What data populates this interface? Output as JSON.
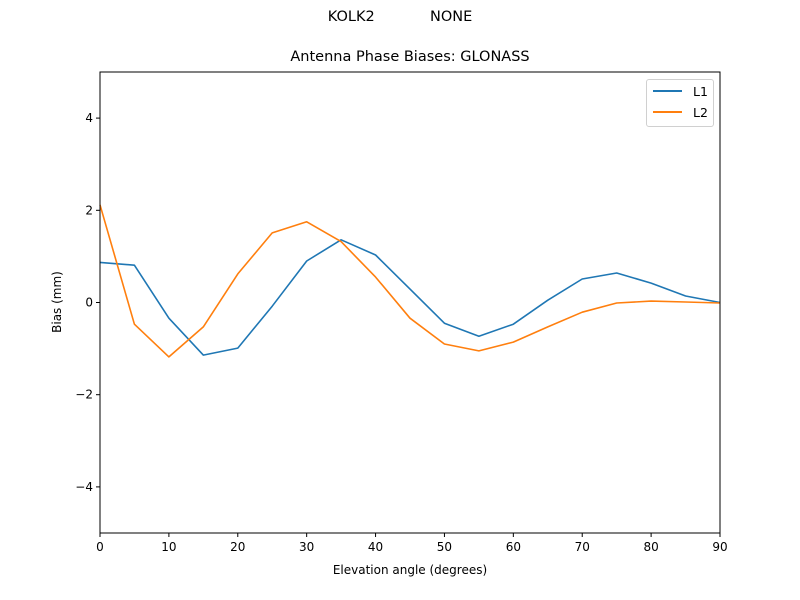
{
  "figure": {
    "suptitle": "KOLK2            NONE",
    "title": "Antenna Phase Biases: GLONASS",
    "xlabel": "Elevation angle (degrees)",
    "ylabel": "Bias (mm)"
  },
  "legend": [
    {
      "label": "L1",
      "color": "#1f77b4"
    },
    {
      "label": "L2",
      "color": "#ff7f0e"
    }
  ],
  "chart_data": {
    "type": "line",
    "title": "Antenna Phase Biases: GLONASS",
    "suptitle": "KOLK2            NONE",
    "xlabel": "Elevation angle (degrees)",
    "ylabel": "Bias (mm)",
    "xlim": [
      0,
      90
    ],
    "ylim": [
      -5,
      5
    ],
    "xticks": [
      0,
      10,
      20,
      30,
      40,
      50,
      60,
      70,
      80,
      90
    ],
    "yticks": [
      -4,
      -2,
      0,
      2,
      4
    ],
    "grid": false,
    "legend_position": "upper right",
    "x": [
      0,
      5,
      10,
      15,
      20,
      25,
      30,
      35,
      40,
      45,
      50,
      55,
      60,
      65,
      70,
      75,
      80,
      85,
      90
    ],
    "series": [
      {
        "name": "L1",
        "color": "#1f77b4",
        "values": [
          0.87,
          0.81,
          -0.34,
          -1.14,
          -0.99,
          -0.08,
          0.9,
          1.36,
          1.03,
          0.29,
          -0.45,
          -0.73,
          -0.47,
          0.05,
          0.51,
          0.64,
          0.42,
          0.14,
          0.0
        ]
      },
      {
        "name": "L2",
        "color": "#ff7f0e",
        "values": [
          2.12,
          -0.47,
          -1.18,
          -0.53,
          0.62,
          1.51,
          1.75,
          1.32,
          0.55,
          -0.34,
          -0.9,
          -1.05,
          -0.86,
          -0.53,
          -0.21,
          -0.01,
          0.03,
          0.01,
          -0.01
        ]
      }
    ]
  }
}
